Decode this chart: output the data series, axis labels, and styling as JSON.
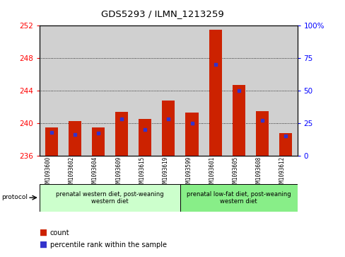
{
  "title": "GDS5293 / ILMN_1213259",
  "samples": [
    "GSM1093600",
    "GSM1093602",
    "GSM1093604",
    "GSM1093609",
    "GSM1093615",
    "GSM1093619",
    "GSM1093599",
    "GSM1093601",
    "GSM1093605",
    "GSM1093608",
    "GSM1093612"
  ],
  "count_values": [
    239.5,
    240.2,
    239.5,
    241.4,
    240.5,
    242.8,
    241.3,
    251.5,
    244.7,
    241.5,
    238.8
  ],
  "percentile_values": [
    18,
    16,
    17,
    28,
    20,
    28,
    25,
    70,
    50,
    27,
    15
  ],
  "ylim_left": [
    236,
    252
  ],
  "ylim_right": [
    0,
    100
  ],
  "yticks_left": [
    236,
    240,
    244,
    248,
    252
  ],
  "yticks_right": [
    0,
    25,
    50,
    75,
    100
  ],
  "bar_color": "#cc2200",
  "dot_color": "#3333cc",
  "plot_bg_color": "#d0d0d0",
  "label_bg_color": "#c8c8c8",
  "group1_label": "prenatal western diet, post-weaning\nwestern diet",
  "group2_label": "prenatal low-fat diet, post-weaning\nwestern diet",
  "group1_color": "#ccffcc",
  "group2_color": "#88ee88",
  "protocol_label": "protocol",
  "legend_count": "count",
  "legend_percentile": "percentile rank within the sample",
  "bar_width": 0.55,
  "n_group1": 6,
  "n_group2": 5
}
